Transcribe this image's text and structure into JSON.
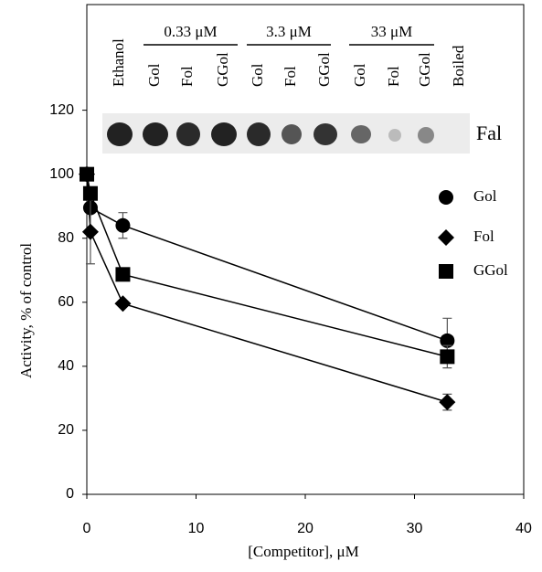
{
  "chart_data": {
    "type": "line",
    "title_lanes": [
      "Ethanol",
      "Gol",
      "Fol",
      "GGol",
      "Gol",
      "Fol",
      "GGol",
      "Gol",
      "Fol",
      "GGol",
      "Boiled"
    ],
    "lane_groups": [
      "0.33 μM",
      "3.3 μM",
      "33 μM"
    ],
    "band_label": "Fal",
    "x_label": "[Competitor], μM",
    "y_label": "Activity, % of control",
    "x": [
      0,
      0.33,
      3.3,
      33
    ],
    "series": [
      {
        "name": "Gol",
        "color": "#000000",
        "marker": "circle",
        "values": [
          100,
          89.5,
          84,
          48
        ],
        "errors": [
          null,
          null,
          4,
          7
        ]
      },
      {
        "name": "Fol",
        "color": "#000000",
        "marker": "diamond",
        "values": [
          100,
          82,
          59.6,
          28.8
        ],
        "errors": [
          null,
          10,
          null,
          2.5
        ]
      },
      {
        "name": "GGol",
        "color": "#000000",
        "marker": "square",
        "values": [
          100,
          94,
          68.7,
          43
        ],
        "errors": [
          null,
          null,
          null,
          3.5
        ]
      }
    ],
    "xlim": [
      0,
      40
    ],
    "xticks": [
      0,
      10,
      20,
      30,
      40
    ],
    "ylim": [
      0,
      153
    ],
    "yticks": [
      0,
      20,
      40,
      60,
      80,
      100,
      120
    ],
    "grid": false,
    "legend": "right"
  }
}
